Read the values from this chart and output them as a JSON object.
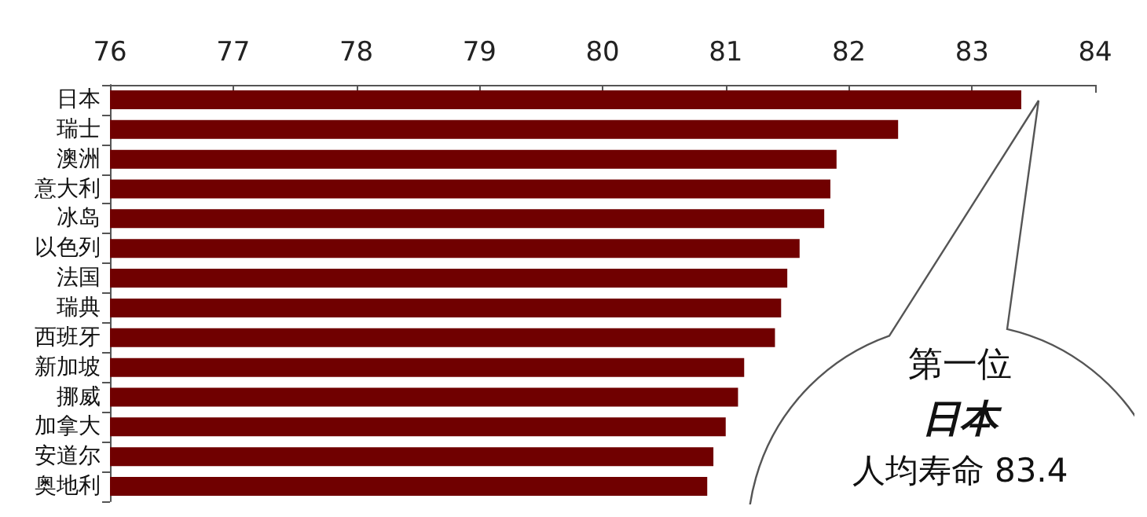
{
  "chart_data": {
    "type": "bar",
    "orientation": "horizontal",
    "categories": [
      "日本",
      "瑞士",
      "澳洲",
      "意大利",
      "冰岛",
      "以色列",
      "法国",
      "瑞典",
      "西班牙",
      "新加坡",
      "挪威",
      "加拿大",
      "安道尔",
      "奥地利"
    ],
    "values": [
      83.4,
      82.4,
      81.9,
      81.85,
      81.8,
      81.6,
      81.5,
      81.45,
      81.4,
      81.15,
      81.1,
      81.0,
      80.9,
      80.85
    ],
    "color": "#700000",
    "xlim": [
      76,
      84
    ],
    "xticks": [
      76,
      77,
      78,
      79,
      80,
      81,
      82,
      83,
      84
    ],
    "grid": false,
    "annotations": [
      "第一位",
      "日本",
      "人均寿命 83.4"
    ]
  }
}
